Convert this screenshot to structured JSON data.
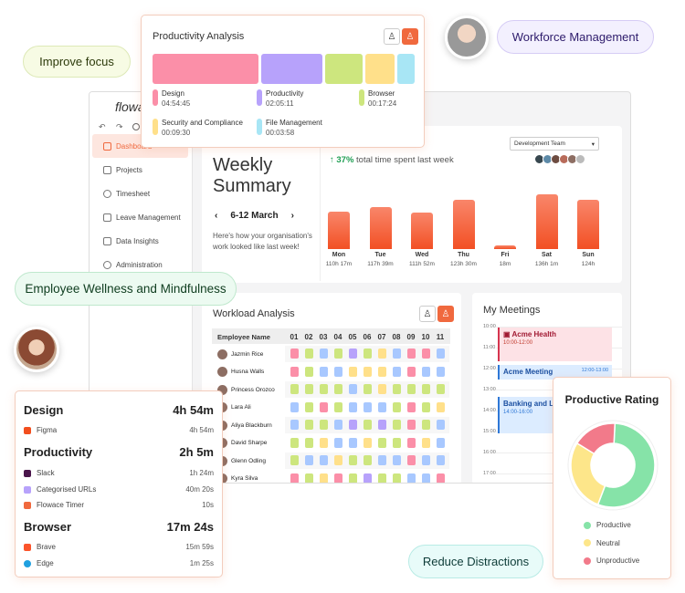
{
  "pills": {
    "improve_focus": "Improve focus",
    "workforce": "Workforce Management",
    "wellness": "Employee Wellness and Mindfulness",
    "reduce": "Reduce Distractions"
  },
  "colors": {
    "accent": "#f0693e",
    "design": "#fb8fa8",
    "productivity": "#b7a2fb",
    "browser": "#cde67e",
    "security": "#ffe08a",
    "file": "#a8e6f5"
  },
  "app": {
    "logo": "flowa",
    "sidebar": [
      {
        "label": "Dashboard",
        "icon": "grid-icon"
      },
      {
        "label": "Projects",
        "icon": "folder-icon"
      },
      {
        "label": "Timesheet",
        "icon": "clock-icon"
      },
      {
        "label": "Leave Management",
        "icon": "leave-icon"
      },
      {
        "label": "Data Insights",
        "icon": "chart-icon"
      },
      {
        "label": "Administration",
        "icon": "admin-icon"
      }
    ],
    "weekly": {
      "title1": "Weekly",
      "title2": "Summary",
      "prev": "‹",
      "range": "6-12 March",
      "next": "›",
      "desc": "Here's how your organisation's work looked like last week!"
    },
    "team_select": "Development Team",
    "stat": {
      "pct": "37%",
      "text": "total time spent last week"
    },
    "days": [
      {
        "day": "Mon",
        "value": "110h 17m",
        "level": 0.6
      },
      {
        "day": "Tue",
        "value": "117h 39m",
        "level": 0.68
      },
      {
        "day": "Wed",
        "value": "111h 52m",
        "level": 0.59
      },
      {
        "day": "Thu",
        "value": "123h 30m",
        "level": 0.8
      },
      {
        "day": "Fri",
        "value": "18m",
        "level": 0.06
      },
      {
        "day": "Sat",
        "value": "136h 1m",
        "level": 0.88
      },
      {
        "day": "Sun",
        "value": "124h",
        "level": 0.8
      }
    ],
    "workload": {
      "title": "Workload Analysis",
      "header": "Employee Name",
      "cols": [
        "01",
        "02",
        "03",
        "04",
        "05",
        "06",
        "07",
        "08",
        "09",
        "10",
        "11"
      ],
      "employees": [
        "Jazmin Rice",
        "Husna Walls",
        "Princess Orozco",
        "Lara Ali",
        "Aliya Blackburn",
        "David Sharpe",
        "Glenn Odling",
        "Kyra Silva"
      ]
    },
    "meetings": {
      "title": "My Meetings",
      "times": [
        "10:00",
        "11:00",
        "12:00",
        "13:00",
        "14:00",
        "15:00",
        "16:00",
        "17:00",
        "18:00"
      ],
      "events": [
        {
          "title": "Acme Health",
          "time": "10:00-12:00"
        },
        {
          "title": "Acme Meeting",
          "time": "12:00-13:00"
        },
        {
          "title": "Banking and Le",
          "time": "14:00-16:00"
        }
      ]
    }
  },
  "productivity_card": {
    "title": "Productivity Analysis",
    "legend": [
      {
        "label": "Design",
        "value": "04:54:45"
      },
      {
        "label": "Productivity",
        "value": "02:05:11"
      },
      {
        "label": "Browser",
        "value": "00:17:24"
      },
      {
        "label": "Security and Compliance",
        "value": "00:09:30"
      },
      {
        "label": "File Management",
        "value": "00:03:58"
      }
    ]
  },
  "usage_card": {
    "sections": [
      {
        "name": "Design",
        "total": "4h 54m",
        "items": [
          {
            "name": "Figma",
            "time": "4h 54m",
            "icon": "figma-icon"
          }
        ]
      },
      {
        "name": "Productivity",
        "total": "2h 5m",
        "items": [
          {
            "name": "Slack",
            "time": "1h 24m",
            "icon": "slack-icon"
          },
          {
            "name": "Categorised URLs",
            "time": "40m 20s",
            "icon": "url-icon"
          },
          {
            "name": "Flowace Timer",
            "time": "10s",
            "icon": "timer-icon"
          }
        ]
      },
      {
        "name": "Browser",
        "total": "17m 24s",
        "items": [
          {
            "name": "Brave",
            "time": "15m 59s",
            "icon": "brave-icon"
          },
          {
            "name": "Edge",
            "time": "1m 25s",
            "icon": "edge-icon"
          }
        ]
      }
    ]
  },
  "rating_card": {
    "title": "Productive Rating",
    "segments": [
      {
        "label": "Productive",
        "value": 0.55,
        "color": "#86e3a8"
      },
      {
        "label": "Neutral",
        "value": 0.28,
        "color": "#fde68a"
      },
      {
        "label": "Unproductive",
        "value": 0.17,
        "color": "#f27a8a"
      }
    ]
  }
}
